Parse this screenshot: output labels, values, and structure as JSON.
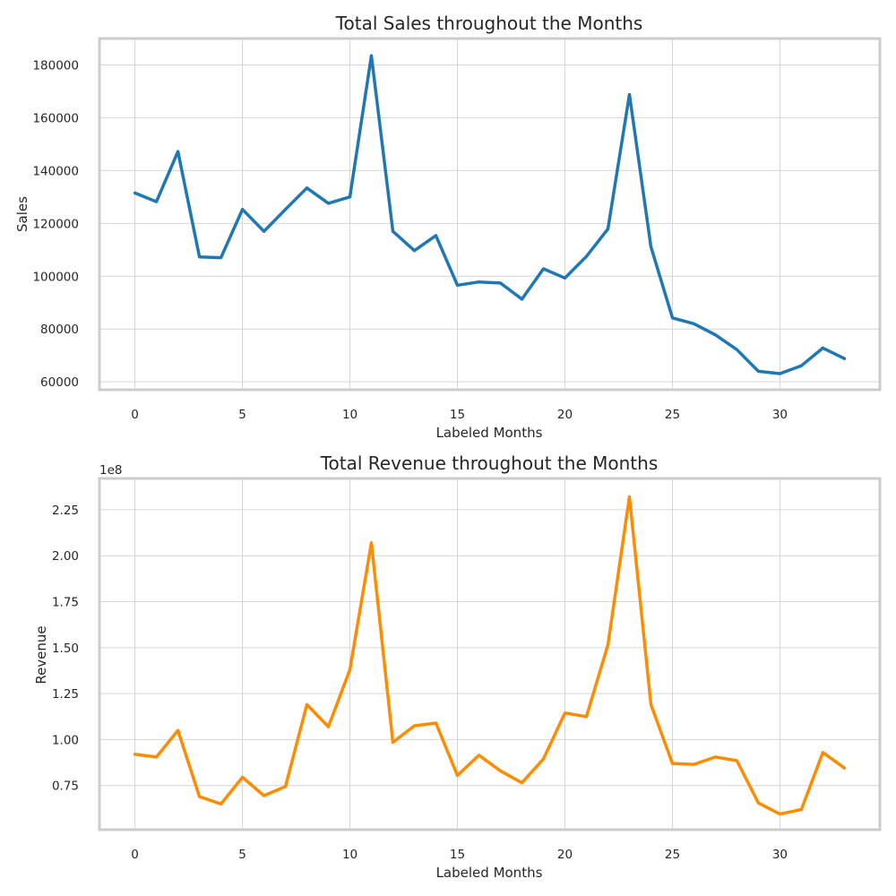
{
  "chart_data": [
    {
      "type": "line",
      "title": "Total Sales throughout the Months",
      "xlabel": "Labeled Months",
      "ylabel": "Sales",
      "y_offset_label": "",
      "xlim": [
        -1.65,
        34.65
      ],
      "ylim": [
        57000,
        190000
      ],
      "xticks": [
        0,
        5,
        10,
        15,
        20,
        25,
        30
      ],
      "yticks": [
        60000,
        80000,
        100000,
        120000,
        140000,
        160000,
        180000
      ],
      "ytick_labels": [
        "60000",
        "80000",
        "100000",
        "120000",
        "140000",
        "160000",
        "180000"
      ],
      "grid": true,
      "series": [
        {
          "color": "#1f77b4",
          "x": [
            0,
            1,
            2,
            3,
            4,
            5,
            6,
            7,
            8,
            9,
            10,
            11,
            12,
            13,
            14,
            15,
            16,
            17,
            18,
            19,
            20,
            21,
            22,
            23,
            24,
            25,
            26,
            27,
            28,
            29,
            30,
            31,
            32,
            33
          ],
          "values": [
            131500,
            128200,
            147200,
            107300,
            107000,
            125300,
            117000,
            125300,
            133400,
            127600,
            130000,
            183500,
            117000,
            109700,
            115400,
            96600,
            97800,
            97400,
            91300,
            102800,
            99300,
            107500,
            117900,
            168800,
            111100,
            84200,
            82000,
            77800,
            72200,
            64000,
            63100,
            66100,
            72800,
            68800
          ]
        }
      ]
    },
    {
      "type": "line",
      "title": "Total Revenue throughout the Months",
      "xlabel": "Labeled Months",
      "ylabel": "Revenue",
      "y_offset_label": "1e8",
      "xlim": [
        -1.65,
        34.65
      ],
      "ylim": [
        0.51,
        2.42
      ],
      "xticks": [
        0,
        5,
        10,
        15,
        20,
        25,
        30
      ],
      "yticks": [
        0.75,
        1.0,
        1.25,
        1.5,
        1.75,
        2.0,
        2.25
      ],
      "ytick_labels": [
        "0.75",
        "1.00",
        "1.25",
        "1.50",
        "1.75",
        "2.00",
        "2.25"
      ],
      "grid": true,
      "series": [
        {
          "color": "#ff8c00",
          "x": [
            0,
            1,
            2,
            3,
            4,
            5,
            6,
            7,
            8,
            9,
            10,
            11,
            12,
            13,
            14,
            15,
            16,
            17,
            18,
            19,
            20,
            21,
            22,
            23,
            24,
            25,
            26,
            27,
            28,
            29,
            30,
            31,
            32,
            33
          ],
          "values": [
            0.92,
            0.905,
            1.05,
            0.69,
            0.65,
            0.795,
            0.695,
            0.745,
            1.19,
            1.07,
            1.38,
            2.07,
            0.985,
            1.075,
            1.09,
            0.805,
            0.915,
            0.83,
            0.765,
            0.895,
            1.145,
            1.125,
            1.515,
            2.32,
            1.19,
            0.87,
            0.865,
            0.905,
            0.885,
            0.655,
            0.595,
            0.62,
            0.93,
            0.845
          ]
        }
      ]
    }
  ]
}
